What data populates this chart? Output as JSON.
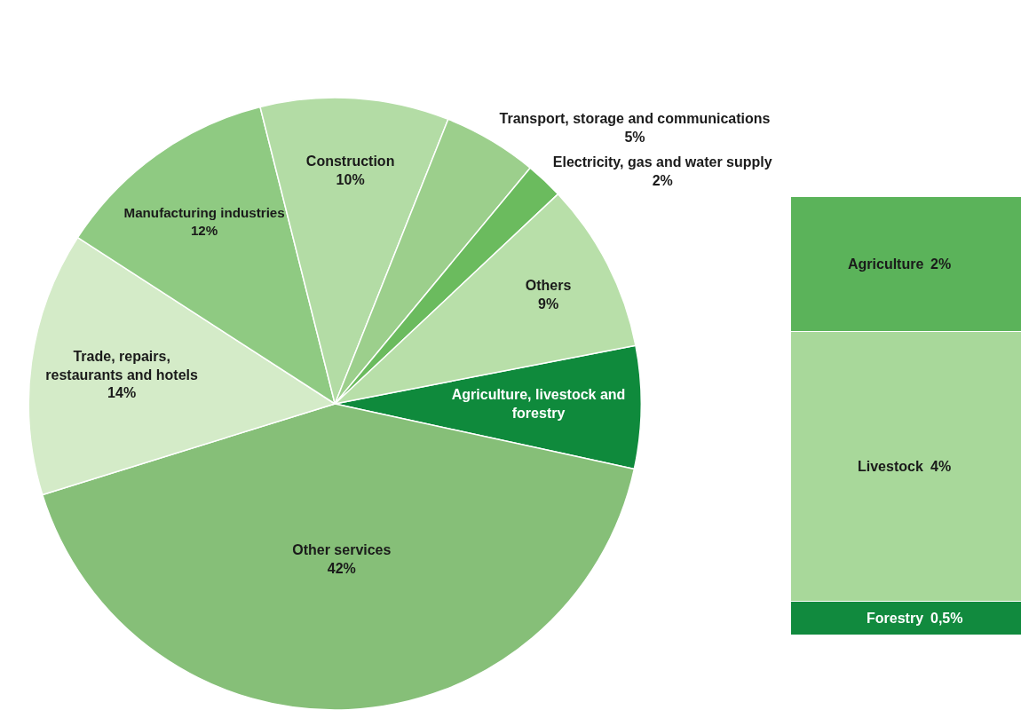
{
  "chart_data": [
    {
      "type": "pie",
      "categories": [
        "Agriculture, livestock and forestry",
        "Other services",
        "Trade, repairs, restaurants and hotels",
        "Manufacturing industries",
        "Construction",
        "Transport, storage and communications",
        "Electricity, gas and water supply",
        "Others"
      ],
      "values": [
        6.5,
        42,
        14,
        12,
        10,
        5,
        2,
        9
      ],
      "value_labels": [
        null,
        "42%",
        "14%",
        "12%",
        "10%",
        "5%",
        "2%",
        "9%"
      ],
      "colors": [
        "#0f8a3c",
        "#86bf78",
        "#d4ebc8",
        "#8fca82",
        "#b3dca5",
        "#9ccf8c",
        "#6bbb5e",
        "#b8dfa9"
      ],
      "legend": false
    },
    {
      "type": "bar",
      "stacked": true,
      "categories": [
        null
      ],
      "series": [
        {
          "name": "Forestry",
          "color": "#118a3e",
          "values": [
            0.5
          ],
          "value_labels": [
            "0,5%"
          ]
        },
        {
          "name": "Livestock",
          "color": "#a8d89a",
          "values": [
            4
          ],
          "value_labels": [
            "4%"
          ]
        },
        {
          "name": "Agriculture",
          "color": "#5bb35a",
          "values": [
            2
          ],
          "value_labels": [
            "2%"
          ]
        }
      ]
    }
  ]
}
